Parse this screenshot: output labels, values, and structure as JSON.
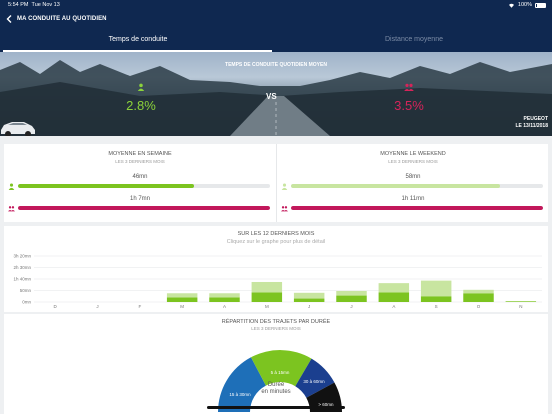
{
  "status": {
    "time": "5:54 PM",
    "date": "Tue Nov 13",
    "battery": "100%"
  },
  "nav": {
    "title": "MA CONDUITE AU QUOTIDIEN",
    "back_icon": "chevron-left-icon"
  },
  "tabs": [
    {
      "label": "Temps de conduite",
      "active": true
    },
    {
      "label": "Distance moyenne",
      "active": false
    }
  ],
  "hero": {
    "title": "TEMPS DE CONDUITE QUOTIDIEN MOYEN",
    "left_value": "2.8%",
    "vs": "VS",
    "right_value": "3.5%",
    "brand": "PEUGEOT",
    "date": "LE 13/11/2018"
  },
  "colors": {
    "green": "#7cc420",
    "light_green": "#c8e5a0",
    "crimson": "#c2185b",
    "navy": "#0f2850",
    "blue": "#1e6fb8",
    "dark_blue": "#1b3f8f"
  },
  "averages": {
    "weekdays": {
      "title": "MOYENNE EN SEMAINE",
      "sub": "LES 3 DERNIERS MOIS",
      "self_value": "46mn",
      "self_fraction": 0.7,
      "other_value": "1h 7mn",
      "other_fraction": 1.0
    },
    "weekend": {
      "title": "MOYENNE LE WEEKEND",
      "sub": "LES 3 DERNIERS MOIS",
      "self_value": "58mn",
      "self_fraction": 0.83,
      "other_value": "1h 11mn",
      "other_fraction": 1.0
    }
  },
  "chart_title": "SUR LES 12 DERNIERS MOIS",
  "chart_sub": "Cliquez sur le graphe pour plus de détail",
  "chart_data": {
    "type": "bar",
    "title": "SUR LES 12 DERNIERS MOIS",
    "categories": [
      "D",
      "J",
      "F",
      "M",
      "A",
      "M",
      "J",
      "J",
      "A",
      "S",
      "O",
      "N"
    ],
    "y_ticks": [
      "0mn",
      "50mn",
      "1h 40mn",
      "2h 30mn",
      "3h 20mn"
    ],
    "ylim": [
      0,
      200
    ],
    "series": [
      {
        "values": [
          0,
          0,
          0,
          20,
          20,
          42,
          15,
          28,
          42,
          25,
          38,
          3
        ]
      },
      {
        "values": [
          0,
          0,
          0,
          18,
          18,
          45,
          25,
          20,
          40,
          68,
          15,
          0
        ]
      }
    ]
  },
  "distribution": {
    "title": "RÉPARTITION DES TRAJETS PAR DURÉE",
    "sub": "LES 3 DERNIERS MOIS",
    "segments": [
      {
        "label": "15 à 30mn"
      },
      {
        "label": "5 à 15mn"
      },
      {
        "label": "30 à 60mn"
      },
      {
        "label": "> 60mn"
      }
    ],
    "center_line1": "Durée",
    "center_line2": "en minutes"
  }
}
